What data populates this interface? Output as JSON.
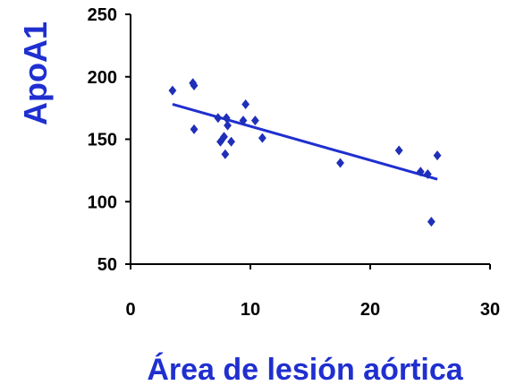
{
  "chart_data": {
    "type": "scatter",
    "xlabel": "Área de lesión aórtica",
    "ylabel": "ApoA1",
    "xlim": [
      0,
      30
    ],
    "ylim": [
      50,
      250
    ],
    "x_ticks": [
      "0",
      "10",
      "20",
      "30"
    ],
    "y_ticks": [
      "50",
      "100",
      "150",
      "200",
      "250"
    ],
    "grid": false,
    "legend": "none",
    "marker_color": "#1f2fb8",
    "trendline_color": "#1f2fd0",
    "title_color": "#1f2fd0",
    "points": [
      {
        "x": 3.5,
        "y": 189
      },
      {
        "x": 5.2,
        "y": 195
      },
      {
        "x": 5.3,
        "y": 193
      },
      {
        "x": 5.3,
        "y": 158
      },
      {
        "x": 7.3,
        "y": 167
      },
      {
        "x": 7.5,
        "y": 148
      },
      {
        "x": 7.8,
        "y": 152
      },
      {
        "x": 7.9,
        "y": 138
      },
      {
        "x": 8.0,
        "y": 167
      },
      {
        "x": 8.1,
        "y": 161
      },
      {
        "x": 8.4,
        "y": 148
      },
      {
        "x": 9.4,
        "y": 165
      },
      {
        "x": 9.6,
        "y": 178
      },
      {
        "x": 10.4,
        "y": 165
      },
      {
        "x": 11.0,
        "y": 151
      },
      {
        "x": 17.5,
        "y": 131
      },
      {
        "x": 22.4,
        "y": 141
      },
      {
        "x": 24.2,
        "y": 124
      },
      {
        "x": 24.8,
        "y": 122
      },
      {
        "x": 25.1,
        "y": 84
      },
      {
        "x": 25.6,
        "y": 137
      }
    ],
    "trendline": {
      "x": [
        3.5,
        25.6
      ],
      "y": [
        178,
        118
      ]
    }
  }
}
